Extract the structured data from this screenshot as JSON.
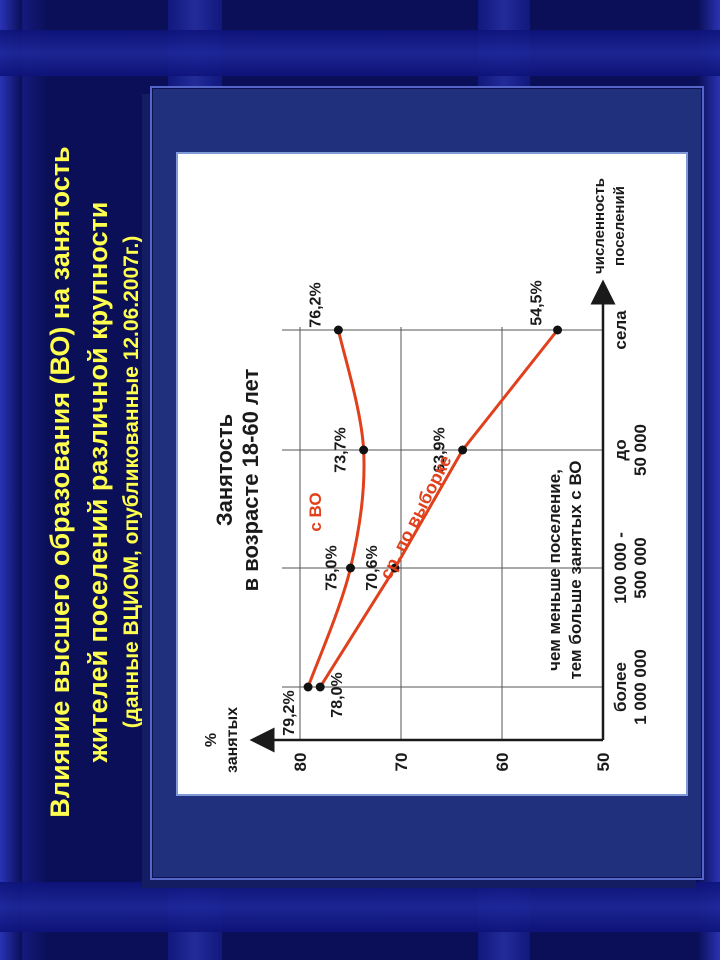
{
  "slide": {
    "title_line1": "Влияние высшего образования (ВО) на занятость",
    "title_line2": "жителей поселений различной крупности",
    "title_line3": "(данные ВЦИОМ, опубликованные 12.06.2007г.)"
  },
  "colors": {
    "title": "#ffff4d",
    "series_line": "#e0401b",
    "slide_bg": "#0a0f57"
  },
  "chart_data": {
    "type": "line",
    "orientation": "rotated-90-ccw",
    "title_line1": "Занятость",
    "title_line2": "в возрасте 18-60 лет",
    "ylabel_line1": "%",
    "ylabel_line2": "занятых",
    "xlabel_line1": "численность",
    "xlabel_line2": "поселений",
    "y_ticks": [
      "80",
      "70",
      "60",
      "50"
    ],
    "ylim": [
      50,
      81
    ],
    "categories": [
      {
        "line1": "более",
        "line2": "1 000 000"
      },
      {
        "line1": "100 000 -",
        "line2": "500 000"
      },
      {
        "line1": "до",
        "line2": "50 000"
      },
      {
        "line1": "села",
        "line2": ""
      }
    ],
    "grid": true,
    "series": [
      {
        "name": "с ВО",
        "values": [
          79.2,
          75.0,
          73.7,
          76.2
        ],
        "labels": [
          "79,2%",
          "75,0%",
          "73,7%",
          "76,2%"
        ]
      },
      {
        "name": "ср. по выборке",
        "values": [
          78.0,
          70.6,
          63.9,
          54.5
        ],
        "labels": [
          "78,0%",
          "70,6%",
          "63,9%",
          "54,5%"
        ]
      }
    ],
    "annotation_line1": "чем меньше поселение,",
    "annotation_line2": "тем больше занятых с ВО"
  }
}
